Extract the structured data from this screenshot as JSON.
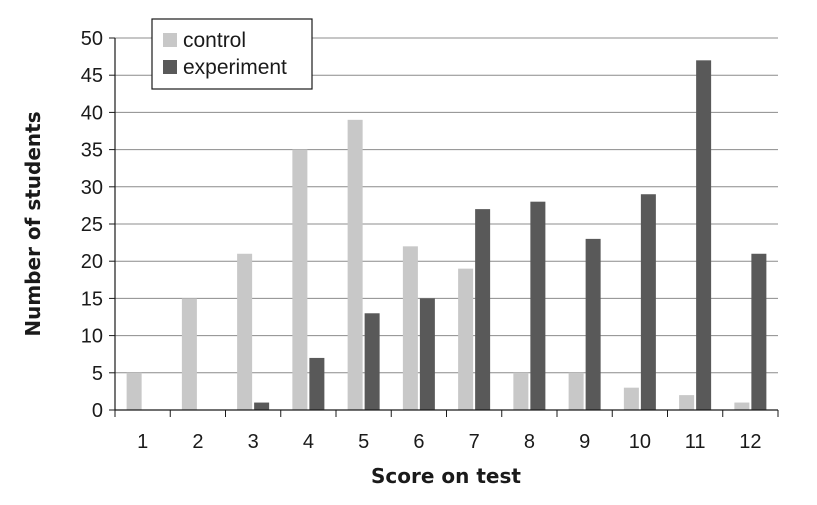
{
  "chart_data": {
    "type": "bar",
    "title": "",
    "xlabel": "Score on test",
    "ylabel": "Number of students",
    "ylim": [
      0,
      50
    ],
    "yticks": [
      0,
      5,
      10,
      15,
      20,
      25,
      30,
      35,
      40,
      45,
      50
    ],
    "grid": true,
    "legend_position": "top-left",
    "categories": [
      "1",
      "2",
      "3",
      "4",
      "5",
      "6",
      "7",
      "8",
      "9",
      "10",
      "11",
      "12"
    ],
    "series": [
      {
        "name": "control",
        "color": "#c8c8c8",
        "values": [
          5,
          15,
          21,
          35,
          39,
          22,
          19,
          5,
          5,
          3,
          2,
          1
        ]
      },
      {
        "name": "experiment",
        "color": "#595959",
        "values": [
          0,
          0,
          1,
          7,
          13,
          15,
          27,
          28,
          23,
          29,
          47,
          21
        ]
      }
    ]
  }
}
